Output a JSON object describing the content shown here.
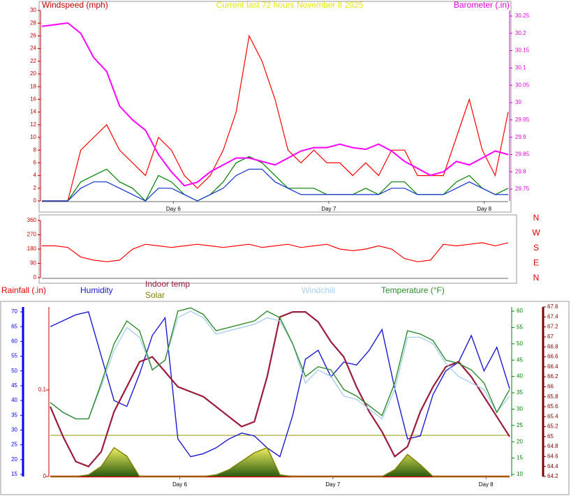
{
  "chart_data": [
    {
      "type": "line",
      "title": "Current last 72 hours November 8 2025",
      "ylabel": "Windspeed (mph)",
      "y2label": "Barometer (.in)",
      "x": [
        0,
        2,
        4,
        6,
        8,
        10,
        12,
        14,
        16,
        18,
        20,
        22,
        24,
        26,
        28,
        30,
        32,
        34,
        36,
        38,
        40,
        42,
        44,
        46,
        48,
        50,
        52,
        54,
        56,
        58,
        60,
        62,
        64,
        66,
        68,
        70,
        72
      ],
      "xlim": [
        0,
        72
      ],
      "xticks": [
        {
          "value": 20.3,
          "label": "Day 6"
        },
        {
          "value": 44.3,
          "label": "Day 7"
        },
        {
          "value": 68.3,
          "label": "Day 8"
        }
      ],
      "ylim": [
        0,
        30
      ],
      "yticks": [
        0,
        2,
        4,
        6,
        8,
        10,
        12,
        14,
        16,
        18,
        20,
        22,
        24,
        26,
        28,
        30
      ],
      "y2lim": [
        29.716,
        30.266
      ],
      "y2ticks": [
        29.75,
        29.8,
        29.85,
        29.9,
        29.95,
        30,
        30.05,
        30.1,
        30.15,
        30.2,
        30.25
      ],
      "series": [
        {
          "color": "#ff0000",
          "values": [
            0,
            0,
            0,
            8,
            10,
            12,
            8,
            6,
            4,
            10,
            8,
            4,
            2,
            4,
            8,
            14,
            26,
            22,
            16,
            8,
            6,
            8,
            6,
            6,
            4,
            6,
            4,
            8,
            8,
            4,
            4,
            4,
            10,
            16,
            8,
            4,
            14
          ]
        },
        {
          "color": "#008000",
          "values": [
            0,
            0,
            0,
            3,
            4,
            5,
            3,
            2,
            0,
            4,
            3,
            1,
            0,
            1,
            3,
            6,
            7,
            6,
            4,
            2,
            2,
            2,
            1,
            1,
            1,
            2,
            1,
            3,
            3,
            1,
            1,
            1,
            3,
            4,
            2,
            1,
            2
          ]
        },
        {
          "color": "#1030d0",
          "values": [
            0,
            0,
            0,
            2,
            3,
            3,
            2,
            1,
            0,
            2,
            2,
            1,
            0,
            1,
            2,
            4,
            5,
            5,
            3,
            2,
            1,
            1,
            1,
            1,
            1,
            1,
            1,
            2,
            2,
            1,
            1,
            1,
            2,
            3,
            2,
            1,
            1
          ]
        },
        {
          "color": "#ff00ff",
          "axis": "y2",
          "values": [
            30.22,
            30.225,
            30.23,
            30.2,
            30.13,
            30.09,
            29.99,
            29.95,
            29.92,
            29.85,
            29.8,
            29.76,
            29.77,
            29.8,
            29.82,
            29.84,
            29.84,
            29.83,
            29.82,
            29.84,
            29.86,
            29.87,
            29.87,
            29.88,
            29.87,
            29.865,
            29.88,
            29.86,
            29.83,
            29.81,
            29.79,
            29.8,
            29.83,
            29.82,
            29.84,
            29.86,
            29.85
          ]
        }
      ]
    },
    {
      "type": "line",
      "x": [
        0,
        2,
        4,
        6,
        8,
        10,
        12,
        14,
        16,
        18,
        20,
        22,
        24,
        26,
        28,
        30,
        32,
        34,
        36,
        38,
        40,
        42,
        44,
        46,
        48,
        50,
        52,
        54,
        56,
        58,
        60,
        62,
        64,
        66,
        68,
        70,
        72
      ],
      "xlim": [
        0,
        72
      ],
      "ylim": [
        0,
        360
      ],
      "yticks": [
        0,
        90,
        180,
        270,
        360
      ],
      "direction_labels": [
        "N",
        "W",
        "S",
        "E",
        "N"
      ],
      "series": [
        {
          "color": "#ff0000",
          "values": [
            200,
            200,
            190,
            130,
            110,
            100,
            110,
            180,
            210,
            200,
            190,
            200,
            210,
            200,
            190,
            200,
            210,
            190,
            200,
            210,
            190,
            200,
            210,
            180,
            170,
            180,
            200,
            180,
            120,
            100,
            110,
            210,
            200,
            210,
            220,
            200,
            220
          ]
        }
      ]
    },
    {
      "type": "line",
      "x": [
        0,
        2,
        4,
        6,
        8,
        10,
        12,
        14,
        16,
        18,
        20,
        22,
        24,
        26,
        28,
        30,
        32,
        34,
        36,
        38,
        40,
        42,
        44,
        46,
        48,
        50,
        52,
        54,
        56,
        58,
        60,
        62,
        64,
        66,
        68,
        70,
        72
      ],
      "xlim": [
        0,
        72
      ],
      "xticks": [
        {
          "value": 20.3,
          "label": "Day 6"
        },
        {
          "value": 44.3,
          "label": "Day 7"
        },
        {
          "value": 68.3,
          "label": "Day 8"
        }
      ],
      "axes": [
        {
          "ylim": [
            0,
            0.196
          ],
          "yticks": [
            0,
            0.1
          ],
          "color": "#c00000"
        },
        {
          "ylim": [
            14.29,
            71.65
          ],
          "yticks": [
            15,
            20,
            25,
            30,
            35,
            40,
            45,
            50,
            55,
            60,
            65,
            70
          ],
          "color": "#0000ff"
        },
        {
          "ylim": [
            9.36,
            61.28
          ],
          "yticks": [
            10,
            15,
            20,
            25,
            30,
            35,
            40,
            45,
            50,
            55,
            60
          ],
          "color": "#008000"
        },
        {
          "ylim": [
            64.2,
            67.6
          ],
          "yticks": [
            64.2,
            64.4,
            64.6,
            64.8,
            65,
            65.2,
            65.4,
            65.6,
            65.8,
            66,
            66.2,
            66.4,
            66.6,
            66.8,
            67,
            67.2,
            67.4,
            67.6
          ],
          "color": "#800000"
        },
        {
          "ylim": [
            0,
            1000
          ]
        }
      ],
      "series": [
        {
          "name": "Rainfall (.in)",
          "axis": 0,
          "color": "#e00000",
          "values": [
            0,
            0,
            0,
            0,
            0,
            0,
            0,
            0,
            0,
            0,
            0,
            0,
            0,
            0,
            0,
            0,
            0,
            0,
            0,
            0,
            0,
            0,
            0,
            0,
            0,
            0,
            0,
            0,
            0,
            0,
            0,
            0,
            0,
            0,
            0,
            0,
            0
          ]
        },
        {
          "name": "Humidity",
          "axis": 1,
          "color": "#1a1ad0",
          "values": [
            65,
            67,
            69,
            70,
            55,
            40,
            38,
            49,
            62,
            68,
            27,
            21,
            22,
            24,
            27,
            29,
            28,
            24,
            21,
            35,
            54,
            57,
            48,
            53,
            52,
            57,
            64,
            44,
            27,
            28,
            42,
            50,
            53,
            62,
            50,
            58,
            44
          ]
        },
        {
          "name": "Indoor temp",
          "axis": 3,
          "color": "#9b1b3b",
          "values": [
            65.6,
            65.0,
            64.5,
            64.4,
            64.7,
            65.5,
            66.0,
            66.5,
            66.6,
            66.3,
            66.0,
            65.9,
            65.8,
            65.6,
            65.4,
            65.2,
            65.3,
            66.2,
            67.4,
            67.5,
            67.5,
            67.3,
            66.9,
            66.6,
            66.0,
            65.5,
            65.1,
            64.6,
            64.8,
            65.5,
            66.0,
            66.4,
            66.5,
            66.2,
            65.8,
            65.4,
            65.0
          ]
        },
        {
          "name": "Solar",
          "axis": 4,
          "color": "#808000",
          "values": [
            0,
            0,
            0,
            10,
            60,
            170,
            120,
            0,
            0,
            0,
            0,
            0,
            0,
            10,
            40,
            90,
            140,
            170,
            10,
            0,
            0,
            0,
            0,
            0,
            0,
            0,
            0,
            40,
            130,
            70,
            0,
            0,
            0,
            0,
            0,
            0,
            0
          ]
        },
        {
          "name": "Windchill",
          "axis": 2,
          "color": "#a8d0ec",
          "values": [
            32,
            29,
            27,
            27,
            37,
            48,
            55,
            52,
            42,
            45,
            58,
            60,
            58,
            53,
            54,
            55,
            56,
            58,
            57,
            50,
            38,
            42,
            40,
            34,
            33,
            30,
            27,
            36,
            52,
            52,
            50,
            44,
            40,
            38,
            36,
            29,
            34
          ]
        },
        {
          "name": "Temperature (°F)",
          "axis": 2,
          "color": "#2e8b2e",
          "values": [
            32,
            29,
            27,
            27,
            38,
            50,
            57,
            54,
            42,
            45,
            60,
            61,
            59,
            54,
            55,
            56,
            57,
            60,
            58,
            50,
            40,
            43,
            42,
            36,
            34,
            31,
            28,
            38,
            54,
            53,
            51,
            45,
            44,
            42,
            38,
            29,
            36
          ]
        }
      ]
    }
  ]
}
